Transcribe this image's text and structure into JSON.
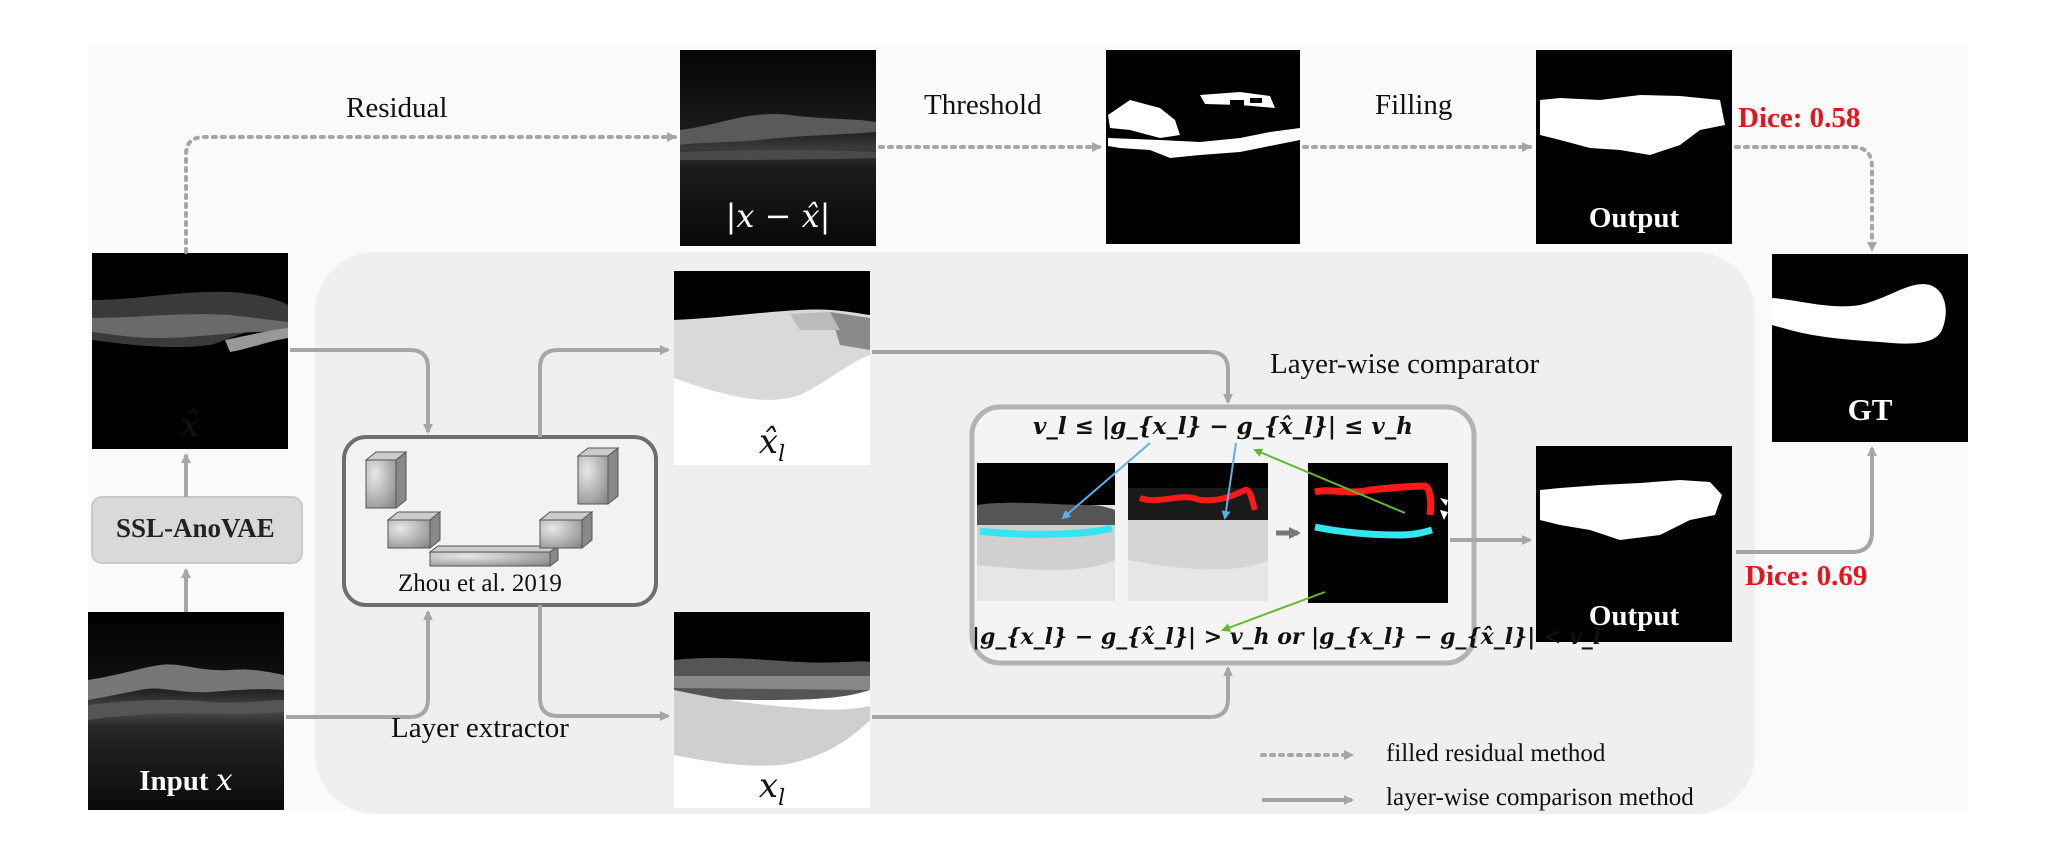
{
  "labels": {
    "residual": "Residual",
    "threshold": "Threshold",
    "filling": "Filling",
    "ssl_anovae": "SSL-AnoVAE",
    "zhou": "Zhou et al. 2019",
    "layer_extractor": "Layer extractor",
    "layer_wise_comparator": "Layer-wise comparator",
    "output_top": "Output",
    "output_bottom": "Output",
    "gt": "GT",
    "input_prefix": "Input",
    "dice_top": "Dice: 0.58",
    "dice_bottom": "Dice: 0.69"
  },
  "math": {
    "residual_abs": "|x − x̂|",
    "x_hat": "x̂",
    "input_x": "x",
    "x_hat_l": "x̂",
    "x_l": "x",
    "sub_l": "l",
    "cond_top": "v_l ≤ |g_{x_l} − g_{x̂_l}| ≤ v_h",
    "cond_bottom": "|g_{x_l} − g_{x̂_l}| > v_h  or  |g_{x_l} − g_{x̂_l}| < v_l"
  },
  "legend": {
    "dotted": "filled residual method",
    "solid": "layer-wise comparison method"
  },
  "colors": {
    "dice": "#e8141b",
    "arrow_gray": "#a6a6a6",
    "panel_bg": "#f0f0f0",
    "boundary_red": "#ff1a1a",
    "boundary_cyan": "#33e6f0",
    "arrow_blue": "#5bb0e8",
    "arrow_green": "#63b833"
  }
}
